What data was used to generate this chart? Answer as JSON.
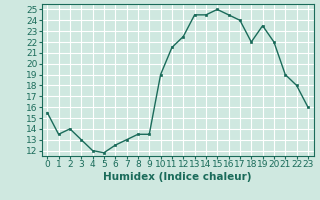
{
  "x": [
    0,
    1,
    2,
    3,
    4,
    5,
    6,
    7,
    8,
    9,
    10,
    11,
    12,
    13,
    14,
    15,
    16,
    17,
    18,
    19,
    20,
    21,
    22,
    23
  ],
  "y": [
    15.5,
    13.5,
    14.0,
    13.0,
    12.0,
    11.8,
    12.5,
    13.0,
    13.5,
    13.5,
    19.0,
    21.5,
    22.5,
    24.5,
    24.5,
    25.0,
    24.5,
    24.0,
    22.0,
    23.5,
    22.0,
    19.0,
    18.0,
    16.0
  ],
  "xlabel": "Humidex (Indice chaleur)",
  "xlim": [
    -0.5,
    23.5
  ],
  "ylim": [
    11.5,
    25.5
  ],
  "yticks": [
    12,
    13,
    14,
    15,
    16,
    17,
    18,
    19,
    20,
    21,
    22,
    23,
    24,
    25
  ],
  "xticks": [
    0,
    1,
    2,
    3,
    4,
    5,
    6,
    7,
    8,
    9,
    10,
    11,
    12,
    13,
    14,
    15,
    16,
    17,
    18,
    19,
    20,
    21,
    22,
    23
  ],
  "line_color": "#1a6b5a",
  "marker_color": "#1a6b5a",
  "bg_color": "#cfe8e0",
  "grid_color": "#ffffff",
  "tick_label_fontsize": 6.5,
  "xlabel_fontsize": 7.5,
  "marker_size": 2.0,
  "linewidth": 1.0
}
